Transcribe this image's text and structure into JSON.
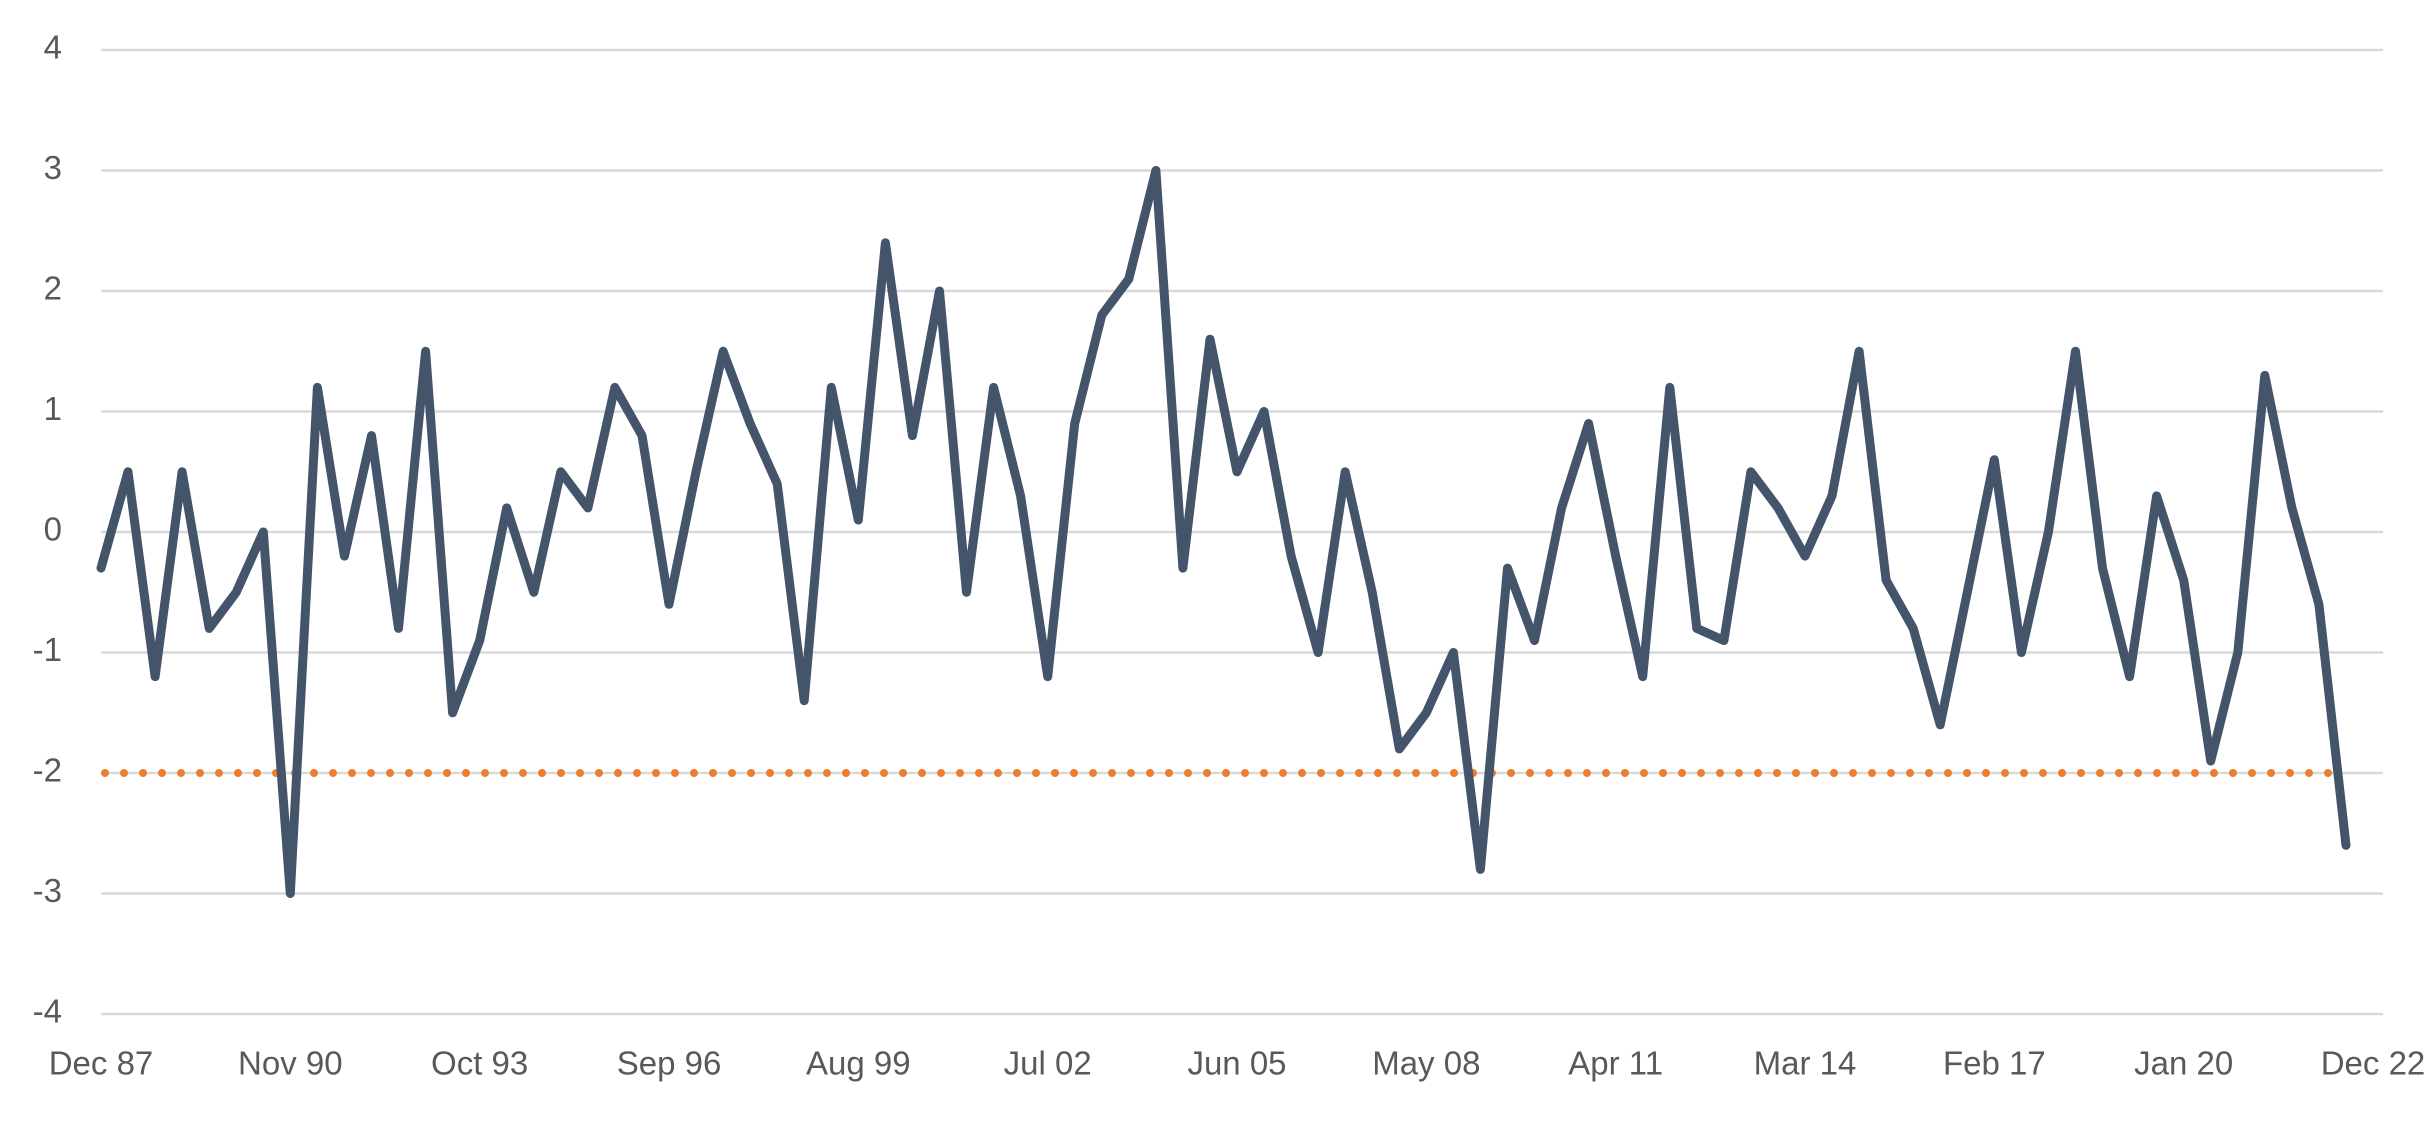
{
  "chart_data": {
    "type": "line",
    "categories": [
      "Dec 87",
      null,
      null,
      null,
      null,
      null,
      null,
      "Nov 90",
      null,
      null,
      null,
      null,
      null,
      null,
      "Oct 93",
      null,
      null,
      null,
      null,
      null,
      null,
      "Sep 96",
      null,
      null,
      null,
      null,
      null,
      null,
      "Aug 99",
      null,
      null,
      null,
      null,
      null,
      null,
      "Jul 02",
      null,
      null,
      null,
      null,
      null,
      null,
      "Jun 05",
      null,
      null,
      null,
      null,
      null,
      null,
      "May 08",
      null,
      null,
      null,
      null,
      null,
      null,
      "Apr 11",
      null,
      null,
      null,
      null,
      null,
      null,
      "Mar 14",
      null,
      null,
      null,
      null,
      null,
      null,
      "Feb 17",
      null,
      null,
      null,
      null,
      null,
      null,
      "Jan 20",
      null,
      null,
      null,
      null,
      null,
      null,
      "Dec 22"
    ],
    "values": [
      -0.3,
      0.5,
      -1.2,
      0.5,
      -0.8,
      -0.5,
      0,
      -3.0,
      1.2,
      -0.2,
      0.8,
      -0.8,
      1.5,
      -1.5,
      -0.9,
      0.2,
      -0.5,
      0.5,
      0.2,
      1.2,
      0.8,
      -0.6,
      0.5,
      1.5,
      0.9,
      0.4,
      -1.4,
      1.2,
      0.1,
      2.4,
      0.8,
      2.0,
      -0.5,
      1.2,
      0.3,
      -1.2,
      0.9,
      1.8,
      2.1,
      3.0,
      -0.3,
      1.6,
      0.5,
      1.0,
      -0.2,
      -1.0,
      0.5,
      -0.5,
      -1.8,
      -1.5,
      -1.0,
      -2.8,
      -0.3,
      -0.9,
      0.2,
      0.9,
      -0.2,
      -1.2,
      1.2,
      -0.8,
      -0.9,
      0.5,
      0.2,
      -0.2,
      0.3,
      1.5,
      -0.4,
      -0.8,
      -1.6,
      -0.5,
      0.6,
      -1.0,
      0.0,
      1.5,
      -0.3,
      -1.2,
      0.3,
      -0.4,
      -1.9,
      -1.0,
      1.3,
      0.2,
      -0.6,
      -2.6,
      null
    ],
    "color": "#44546a",
    "reference_line": {
      "value": -2,
      "color": "#ed7d31",
      "style": "dotted"
    },
    "ylim": [
      -4,
      4
    ],
    "yticks": [
      -4,
      -3,
      -2,
      -1,
      0,
      1,
      2,
      3,
      4
    ],
    "grid": true
  }
}
